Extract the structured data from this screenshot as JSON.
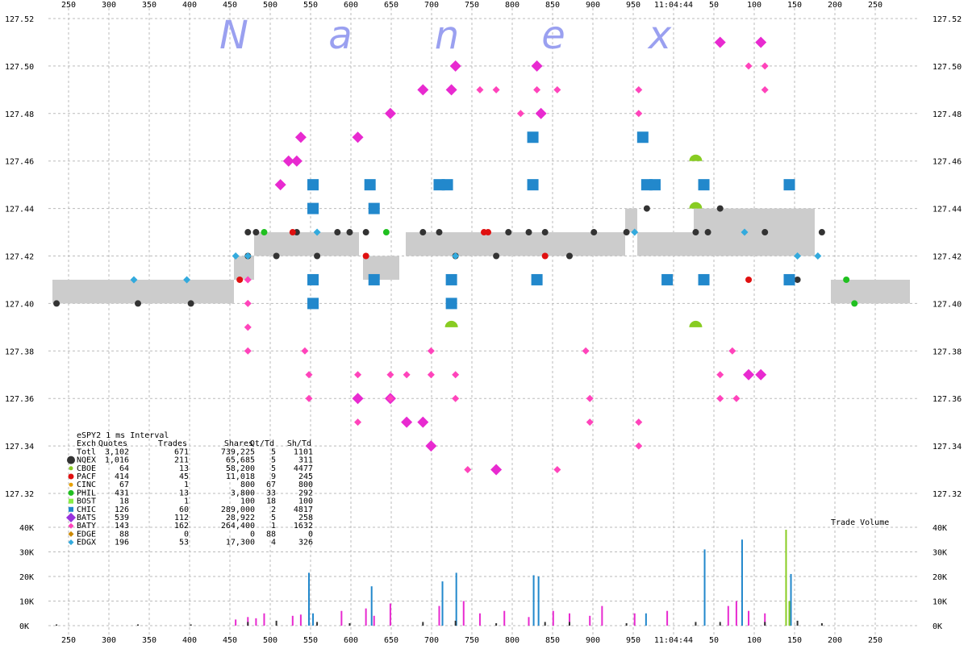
{
  "brand_letters": [
    "N",
    "a",
    "n",
    "e",
    "x"
  ],
  "chart_data": [
    {
      "type": "scatter",
      "title": "",
      "y_ticks": [
        "127.52",
        "127.50",
        "127.48",
        "127.46",
        "127.44",
        "127.42",
        "127.40",
        "127.38",
        "127.36",
        "127.34",
        "127.32"
      ],
      "x_ticks": [
        "250",
        "300",
        "350",
        "400",
        "450",
        "500",
        "550",
        "600",
        "650",
        "700",
        "750",
        "800",
        "850",
        "900",
        "950",
        "11:04:44",
        "50",
        "100",
        "150",
        "200",
        "250"
      ],
      "ylim": [
        127.32,
        127.52
      ],
      "grid": true,
      "series": [
        {
          "name": "NQEX",
          "color": "#333333",
          "shape": "circle",
          "points": [
            [
              250,
              127.4
            ],
            [
              350,
              127.4
            ],
            [
              415,
              127.4
            ],
            [
              485,
              127.43
            ],
            [
              495,
              127.43
            ],
            [
              485,
              127.42
            ],
            [
              520,
              127.42
            ],
            [
              545,
              127.43
            ],
            [
              570,
              127.42
            ],
            [
              595,
              127.43
            ],
            [
              610,
              127.43
            ],
            [
              630,
              127.43
            ],
            [
              700,
              127.43
            ],
            [
              720,
              127.43
            ],
            [
              740,
              127.42
            ],
            [
              790,
              127.42
            ],
            [
              805,
              127.43
            ],
            [
              830,
              127.43
            ],
            [
              850,
              127.43
            ],
            [
              880,
              127.42
            ],
            [
              910,
              127.43
            ],
            [
              950,
              127.43
            ],
            [
              975,
              127.44
            ],
            [
              1035,
              127.43
            ],
            [
              1050,
              127.43
            ],
            [
              1065,
              127.44
            ],
            [
              1120,
              127.43
            ],
            [
              1160,
              127.41
            ],
            [
              1190,
              127.43
            ]
          ]
        },
        {
          "name": "PACF",
          "color": "#e01010",
          "shape": "circle",
          "points": [
            [
              475,
              127.41
            ],
            [
              540,
              127.43
            ],
            [
              630,
              127.42
            ],
            [
              775,
              127.43
            ],
            [
              780,
              127.43
            ],
            [
              850,
              127.42
            ],
            [
              1100,
              127.41
            ]
          ]
        },
        {
          "name": "PHIL",
          "color": "#20c020",
          "shape": "circle",
          "points": [
            [
              505,
              127.43
            ],
            [
              655,
              127.43
            ],
            [
              1220,
              127.41
            ],
            [
              1230,
              127.4
            ]
          ]
        },
        {
          "name": "CBOE",
          "color": "#88cc22",
          "shape": "halfdisk",
          "points": [
            [
              735,
              127.39
            ],
            [
              1035,
              127.46
            ],
            [
              1035,
              127.44
            ],
            [
              1035,
              127.39
            ]
          ]
        },
        {
          "name": "BATS",
          "color": "#e82ad0",
          "shape": "diamond",
          "points": [
            [
              525,
              127.45
            ],
            [
              535,
              127.46
            ],
            [
              545,
              127.46
            ],
            [
              550,
              127.47
            ],
            [
              620,
              127.47
            ],
            [
              660,
              127.48
            ],
            [
              700,
              127.49
            ],
            [
              735,
              127.49
            ],
            [
              740,
              127.5
            ],
            [
              840,
              127.5
            ],
            [
              845,
              127.48
            ],
            [
              620,
              127.36
            ],
            [
              660,
              127.36
            ],
            [
              680,
              127.35
            ],
            [
              700,
              127.35
            ],
            [
              710,
              127.34
            ],
            [
              790,
              127.33
            ],
            [
              1100,
              127.37
            ],
            [
              1115,
              127.37
            ],
            [
              1115,
              127.51
            ],
            [
              1065,
              127.51
            ]
          ]
        },
        {
          "name": "BATY",
          "color": "#ff44bb",
          "shape": "smalldiamond",
          "points": [
            [
              485,
              127.41
            ],
            [
              485,
              127.4
            ],
            [
              485,
              127.39
            ],
            [
              485,
              127.38
            ],
            [
              555,
              127.38
            ],
            [
              560,
              127.37
            ],
            [
              560,
              127.36
            ],
            [
              620,
              127.37
            ],
            [
              620,
              127.35
            ],
            [
              660,
              127.37
            ],
            [
              660,
              127.36
            ],
            [
              680,
              127.37
            ],
            [
              710,
              127.38
            ],
            [
              710,
              127.37
            ],
            [
              740,
              127.37
            ],
            [
              740,
              127.36
            ],
            [
              755,
              127.33
            ],
            [
              770,
              127.49
            ],
            [
              790,
              127.49
            ],
            [
              820,
              127.48
            ],
            [
              840,
              127.49
            ],
            [
              865,
              127.49
            ],
            [
              865,
              127.33
            ],
            [
              900,
              127.38
            ],
            [
              905,
              127.36
            ],
            [
              905,
              127.35
            ],
            [
              965,
              127.49
            ],
            [
              965,
              127.48
            ],
            [
              965,
              127.35
            ],
            [
              965,
              127.34
            ],
            [
              1080,
              127.38
            ],
            [
              1065,
              127.37
            ],
            [
              1065,
              127.36
            ],
            [
              1085,
              127.36
            ],
            [
              1100,
              127.5
            ],
            [
              1120,
              127.49
            ],
            [
              1120,
              127.5
            ]
          ]
        },
        {
          "name": "CHIC",
          "color": "#2288cc",
          "shape": "square",
          "points": [
            [
              565,
              127.45
            ],
            [
              565,
              127.44
            ],
            [
              565,
              127.41
            ],
            [
              565,
              127.4
            ],
            [
              635,
              127.45
            ],
            [
              640,
              127.44
            ],
            [
              640,
              127.41
            ],
            [
              720,
              127.45
            ],
            [
              730,
              127.45
            ],
            [
              735,
              127.41
            ],
            [
              735,
              127.4
            ],
            [
              835,
              127.47
            ],
            [
              835,
              127.45
            ],
            [
              840,
              127.41
            ],
            [
              970,
              127.47
            ],
            [
              975,
              127.45
            ],
            [
              985,
              127.45
            ],
            [
              1000,
              127.41
            ],
            [
              1045,
              127.45
            ],
            [
              1045,
              127.41
            ],
            [
              1150,
              127.45
            ],
            [
              1150,
              127.41
            ]
          ]
        },
        {
          "name": "EDGX",
          "color": "#33aadd",
          "shape": "smalldiamond",
          "points": [
            [
              345,
              127.41
            ],
            [
              410,
              127.41
            ],
            [
              470,
              127.42
            ],
            [
              485,
              127.42
            ],
            [
              570,
              127.43
            ],
            [
              740,
              127.42
            ],
            [
              960,
              127.43
            ],
            [
              1095,
              127.43
            ],
            [
              1160,
              127.42
            ],
            [
              1185,
              127.42
            ]
          ]
        }
      ]
    },
    {
      "type": "table",
      "title": "eSPY2 1 ms Interval",
      "columns": [
        "Exch",
        "Quotes",
        "Trades",
        "Shares",
        "Qt/Td",
        "Sh/Td"
      ],
      "rows": [
        {
          "exch": "Totl",
          "quotes": "3,102",
          "trades": "671",
          "shares": "739,225",
          "qttd": "5",
          "shtd": "1101",
          "color": "",
          "marker": "none"
        },
        {
          "exch": "NQEX",
          "quotes": "1,016",
          "trades": "211",
          "shares": "65,685",
          "qttd": "5",
          "shtd": "311",
          "color": "#333333",
          "marker": "bigcircle"
        },
        {
          "exch": "CBOE",
          "quotes": "64",
          "trades": "13",
          "shares": "58,200",
          "qttd": "5",
          "shtd": "4477",
          "color": "#88cc22",
          "marker": "dot"
        },
        {
          "exch": "PACF",
          "quotes": "414",
          "trades": "45",
          "shares": "11,018",
          "qttd": "9",
          "shtd": "245",
          "color": "#e01010",
          "marker": "circle"
        },
        {
          "exch": "CINC",
          "quotes": "67",
          "trades": "1",
          "shares": "800",
          "qttd": "67",
          "shtd": "800",
          "color": "#e8a000",
          "marker": "dot"
        },
        {
          "exch": "PHIL",
          "quotes": "431",
          "trades": "13",
          "shares": "3,800",
          "qttd": "33",
          "shtd": "292",
          "color": "#20c020",
          "marker": "circle"
        },
        {
          "exch": "BOST",
          "quotes": "18",
          "trades": "1",
          "shares": "100",
          "qttd": "18",
          "shtd": "100",
          "color": "#88ee44",
          "marker": "square"
        },
        {
          "exch": "CHIC",
          "quotes": "126",
          "trades": "60",
          "shares": "289,000",
          "qttd": "2",
          "shtd": "4817",
          "color": "#2288cc",
          "marker": "square"
        },
        {
          "exch": "BATS",
          "quotes": "539",
          "trades": "112",
          "shares": "28,922",
          "qttd": "5",
          "shtd": "258",
          "color": "#9933dd",
          "marker": "bigdiamond"
        },
        {
          "exch": "BATY",
          "quotes": "143",
          "trades": "162",
          "shares": "264,400",
          "qttd": "1",
          "shtd": "1632",
          "color": "#ff44bb",
          "marker": "diamond"
        },
        {
          "exch": "EDGE",
          "quotes": "88",
          "trades": "0",
          "shares": "0",
          "qttd": "88",
          "shtd": "0",
          "color": "#cc8800",
          "marker": "diamond"
        },
        {
          "exch": "EDGX",
          "quotes": "196",
          "trades": "53",
          "shares": "17,300",
          "qttd": "4",
          "shtd": "326",
          "color": "#33aadd",
          "marker": "diamond"
        }
      ]
    },
    {
      "type": "bar",
      "title": "Trade Volume",
      "y_ticks": [
        "40K",
        "30K",
        "20K",
        "10K",
        "0K"
      ],
      "ylim": [
        0,
        40000
      ],
      "x_ticks": [
        "250",
        "300",
        "350",
        "400",
        "450",
        "500",
        "550",
        "600",
        "650",
        "700",
        "750",
        "800",
        "850",
        "900",
        "950",
        "11:04:44",
        "50",
        "100",
        "150",
        "200",
        "250"
      ],
      "series": [
        {
          "name": "BATY",
          "color": "#e82ad0",
          "points": [
            [
              470,
              2500
            ],
            [
              485,
              3500
            ],
            [
              495,
              3000
            ],
            [
              505,
              5000
            ],
            [
              540,
              4000
            ],
            [
              550,
              4500
            ],
            [
              600,
              6000
            ],
            [
              630,
              7000
            ],
            [
              640,
              4000
            ],
            [
              660,
              9000
            ],
            [
              720,
              8000
            ],
            [
              750,
              10000
            ],
            [
              770,
              5000
            ],
            [
              800,
              6000
            ],
            [
              830,
              3500
            ],
            [
              860,
              6000
            ],
            [
              880,
              5000
            ],
            [
              905,
              4000
            ],
            [
              920,
              8000
            ],
            [
              960,
              5000
            ],
            [
              1000,
              6000
            ],
            [
              1075,
              8000
            ],
            [
              1085,
              10000
            ],
            [
              1100,
              6000
            ],
            [
              1120,
              5000
            ],
            [
              1150,
              3000
            ]
          ]
        },
        {
          "name": "CHIC",
          "color": "#2288cc",
          "points": [
            [
              560,
              21500
            ],
            [
              565,
              5000
            ],
            [
              637,
              16000
            ],
            [
              724,
              18000
            ],
            [
              741,
              21500
            ],
            [
              836,
              20500
            ],
            [
              842,
              20000
            ],
            [
              974,
              5000
            ],
            [
              1046,
              31000
            ],
            [
              1092,
              35000
            ],
            [
              1152,
              21000
            ]
          ]
        },
        {
          "name": "CBOE",
          "color": "#88cc22",
          "points": [
            [
              1146,
              39000
            ],
            [
              1150,
              10000
            ]
          ]
        },
        {
          "name": "NQEX",
          "color": "#333333",
          "points": [
            [
              250,
              500
            ],
            [
              350,
              500
            ],
            [
              415,
              500
            ],
            [
              485,
              1500
            ],
            [
              520,
              2000
            ],
            [
              570,
              1500
            ],
            [
              610,
              1000
            ],
            [
              700,
              1500
            ],
            [
              740,
              2000
            ],
            [
              790,
              1000
            ],
            [
              850,
              1500
            ],
            [
              880,
              1500
            ],
            [
              950,
              1000
            ],
            [
              1035,
              1500
            ],
            [
              1065,
              1500
            ],
            [
              1120,
              1500
            ],
            [
              1160,
              2000
            ],
            [
              1190,
              1000
            ]
          ]
        }
      ]
    }
  ]
}
